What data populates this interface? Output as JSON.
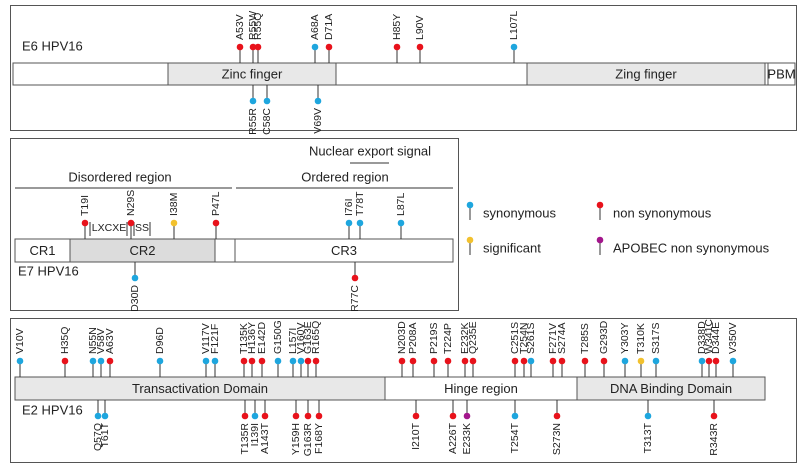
{
  "e6": {
    "name": "E6 HPV16",
    "domains": [
      "Zinc finger",
      "Zing finger",
      "PBM"
    ],
    "above": [
      {
        "label": "A53V",
        "color": "#e8121b"
      },
      {
        "label": "R55W",
        "color": "#e8121b"
      },
      {
        "label": "R55Q",
        "color": "#e8121b"
      },
      {
        "label": "A68A",
        "color": "#1ea6de"
      },
      {
        "label": "D71A",
        "color": "#e8121b"
      },
      {
        "label": "H85Y",
        "color": "#e8121b"
      },
      {
        "label": "L90V",
        "color": "#e8121b"
      },
      {
        "label": "L107L",
        "color": "#1ea6de"
      }
    ],
    "below": [
      {
        "label": "R55R",
        "color": "#1ea6de"
      },
      {
        "label": "C58C",
        "color": "#1ea6de"
      },
      {
        "label": "V69V",
        "color": "#1ea6de"
      }
    ]
  },
  "e7": {
    "name": "E7 HPV16",
    "signal": "Nuclear export signal",
    "regions": [
      "Disordered region",
      "Ordered region"
    ],
    "motifs": [
      "LXCXE",
      "SS"
    ],
    "domains": [
      "CR1",
      "CR2",
      "CR3"
    ],
    "above": [
      {
        "label": "T19I",
        "color": "#e8121b"
      },
      {
        "label": "N29S",
        "color": "#e8121b"
      },
      {
        "label": "I38M",
        "color": "#f2c12e"
      },
      {
        "label": "P47L",
        "color": "#e8121b"
      },
      {
        "label": "I76I",
        "color": "#1ea6de"
      },
      {
        "label": "T78T",
        "color": "#1ea6de"
      },
      {
        "label": "L87L",
        "color": "#1ea6de"
      }
    ],
    "below": [
      {
        "label": "D30D",
        "color": "#1ea6de"
      },
      {
        "label": "R77C",
        "color": "#e8121b"
      }
    ]
  },
  "legend": [
    {
      "name": "synonymous",
      "color": "#1ea6de"
    },
    {
      "name": "non synonymous",
      "color": "#e8121b"
    },
    {
      "name": "significant",
      "color": "#f2c12e"
    },
    {
      "name": "APOBEC non synonymous",
      "color": "#a3168c"
    }
  ],
  "e2": {
    "name": "E2 HPV16",
    "domains": [
      "Transactivation Domain",
      "Hinge region",
      "DNA Binding Domain"
    ],
    "above": [
      {
        "label": "V10V",
        "color": "#1ea6de"
      },
      {
        "label": "H35Q",
        "color": "#e8121b"
      },
      {
        "label": "N55N",
        "color": "#1ea6de"
      },
      {
        "label": "V58V",
        "color": "#1ea6de"
      },
      {
        "label": "A63V",
        "color": "#e8121b"
      },
      {
        "label": "D96D",
        "color": "#1ea6de"
      },
      {
        "label": "V117V",
        "color": "#1ea6de"
      },
      {
        "label": "F121F",
        "color": "#1ea6de"
      },
      {
        "label": "T135K",
        "color": "#e8121b"
      },
      {
        "label": "H136Y",
        "color": "#e8121b"
      },
      {
        "label": "E142D",
        "color": "#e8121b"
      },
      {
        "label": "G150G",
        "color": "#1ea6de"
      },
      {
        "label": "L157I",
        "color": "#1ea6de"
      },
      {
        "label": "V160V",
        "color": "#1ea6de"
      },
      {
        "label": "G163E",
        "color": "#e8121b"
      },
      {
        "label": "R165Q",
        "color": "#e8121b"
      },
      {
        "label": "N203D",
        "color": "#e8121b"
      },
      {
        "label": "P208A",
        "color": "#e8121b"
      },
      {
        "label": "P219S",
        "color": "#e8121b"
      },
      {
        "label": "T224P",
        "color": "#e8121b"
      },
      {
        "label": "E232K",
        "color": "#e8121b"
      },
      {
        "label": "Q235E",
        "color": "#e8121b"
      },
      {
        "label": "C251S",
        "color": "#e8121b"
      },
      {
        "label": "T254N",
        "color": "#e8121b"
      },
      {
        "label": "S261S",
        "color": "#1ea6de"
      },
      {
        "label": "F271V",
        "color": "#e8121b"
      },
      {
        "label": "S274A",
        "color": "#e8121b"
      },
      {
        "label": "T285S",
        "color": "#e8121b"
      },
      {
        "label": "G293D",
        "color": "#e8121b"
      },
      {
        "label": "Y303Y",
        "color": "#1ea6de"
      },
      {
        "label": "T310K",
        "color": "#f2c12e"
      },
      {
        "label": "S317S",
        "color": "#1ea6de"
      },
      {
        "label": "D338D",
        "color": "#1ea6de"
      },
      {
        "label": "W341C",
        "color": "#e8121b"
      },
      {
        "label": "D344E",
        "color": "#e8121b"
      },
      {
        "label": "V350V",
        "color": "#1ea6de"
      }
    ],
    "below": [
      {
        "label": "Q57Q",
        "color": "#1ea6de"
      },
      {
        "label": "T61T",
        "color": "#1ea6de"
      },
      {
        "label": "T135R",
        "color": "#e8121b"
      },
      {
        "label": "I139I",
        "color": "#1ea6de"
      },
      {
        "label": "A143T",
        "color": "#e8121b"
      },
      {
        "label": "Y159H",
        "color": "#e8121b"
      },
      {
        "label": "G163R",
        "color": "#e8121b"
      },
      {
        "label": "F168Y",
        "color": "#e8121b"
      },
      {
        "label": "I210T",
        "color": "#e8121b"
      },
      {
        "label": "A226T",
        "color": "#e8121b"
      },
      {
        "label": "E233K",
        "color": "#a3168c"
      },
      {
        "label": "T254T",
        "color": "#1ea6de"
      },
      {
        "label": "S273N",
        "color": "#e8121b"
      },
      {
        "label": "T313T",
        "color": "#1ea6de"
      },
      {
        "label": "R343R",
        "color": "#e8121b"
      }
    ]
  }
}
